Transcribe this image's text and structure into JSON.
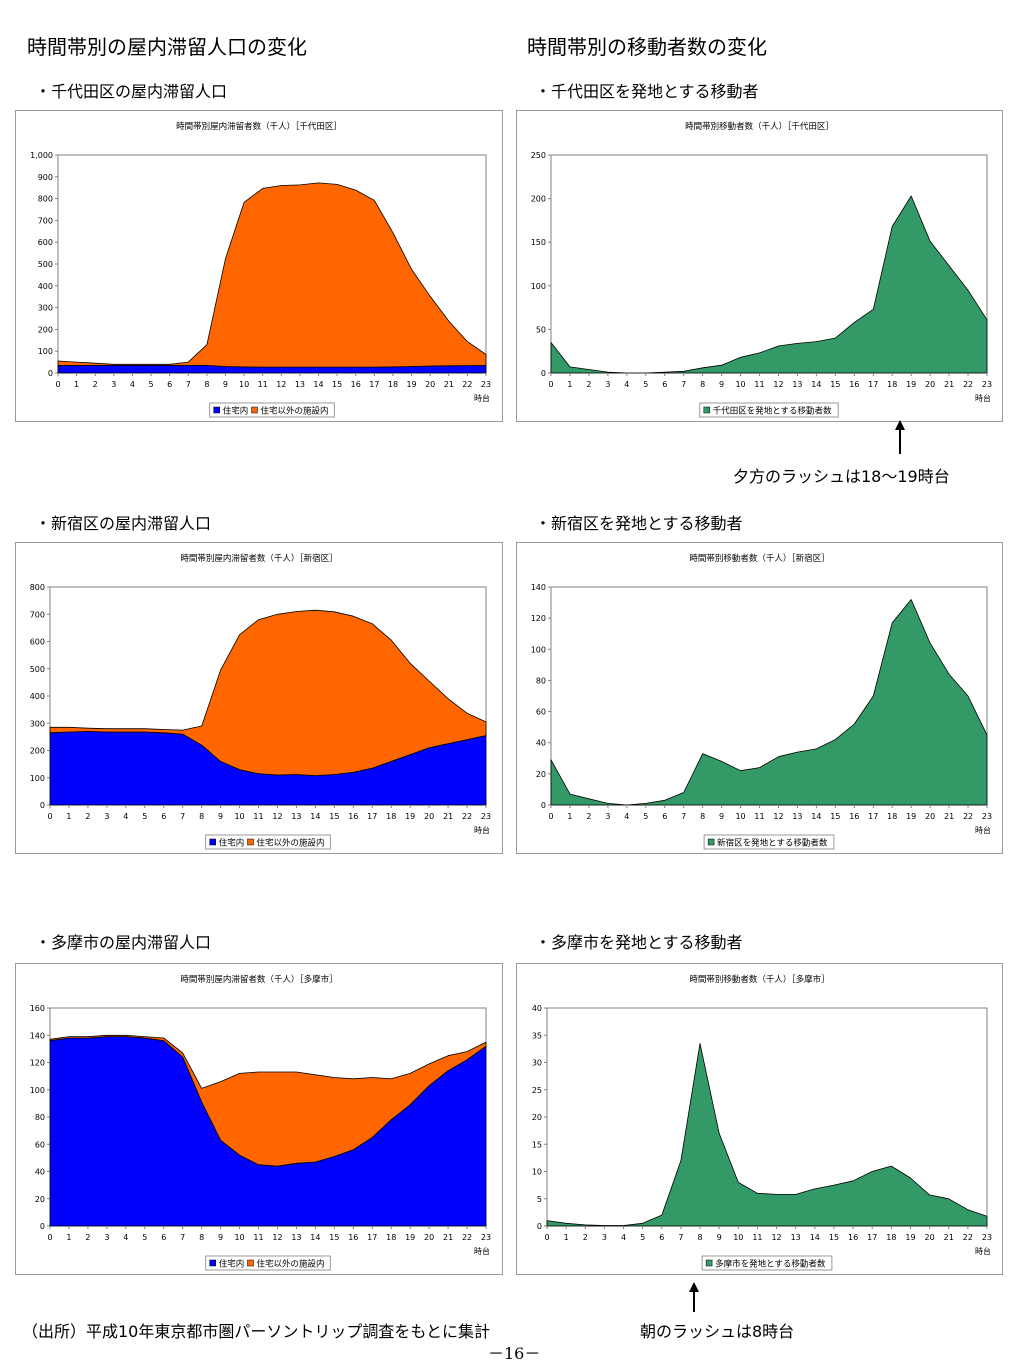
{
  "headings": {
    "left": "時間帯別の屋内滞留人口の変化",
    "right": "時間帯別の移動者数の変化"
  },
  "subheadings": {
    "chiyoda_stay": "・千代田区の屋内滞留人口",
    "chiyoda_move": "・千代田区を発地とする移動者",
    "shinjuku_stay": "・新宿区の屋内滞留人口",
    "shinjuku_move": "・新宿区を発地とする移動者",
    "tama_stay": "・多摩市の屋内滞留人口",
    "tama_move": "・多摩市を発地とする移動者"
  },
  "annotations": {
    "evening": "夕方のラッシュは18～19時台",
    "morning": "朝のラッシュは8時台"
  },
  "footer": {
    "source": "（出所）平成10年東京都市圏パーソントリップ調査をもとに集計",
    "page": "－16－"
  },
  "colors": {
    "home": "#0000ff",
    "facility": "#ff6600",
    "movers": "#339966"
  },
  "chart_data": [
    {
      "type": "area",
      "stacked": true,
      "title": "時間帯別屋内滞留者数（千人）［千代田区］",
      "xlabel": "時台",
      "x": [
        0,
        1,
        2,
        3,
        4,
        5,
        6,
        7,
        8,
        9,
        10,
        11,
        12,
        13,
        14,
        15,
        16,
        17,
        18,
        19,
        20,
        21,
        22,
        23
      ],
      "ylim": [
        0,
        1000
      ],
      "yticks": [
        0,
        100,
        200,
        300,
        400,
        500,
        600,
        700,
        800,
        900,
        1000
      ],
      "ytick_labels": [
        "0",
        "100",
        "200",
        "300",
        "400",
        "500",
        "600",
        "700",
        "800",
        "900",
        "1,000"
      ],
      "legend": "bottom",
      "series": [
        {
          "name": "住宅内",
          "color": "#0000ff",
          "values": [
            35,
            35,
            35,
            35,
            35,
            35,
            35,
            35,
            35,
            30,
            28,
            27,
            27,
            27,
            27,
            27,
            27,
            27,
            28,
            30,
            32,
            33,
            34,
            35
          ]
        },
        {
          "name": "住宅以外の施設内",
          "color": "#ff6600",
          "values": [
            20,
            15,
            10,
            5,
            5,
            5,
            5,
            15,
            95,
            495,
            755,
            820,
            833,
            836,
            845,
            838,
            812,
            765,
            615,
            445,
            320,
            205,
            110,
            50
          ]
        }
      ]
    },
    {
      "type": "area",
      "title": "時間帯別移動者数（千人）［千代田区］",
      "xlabel": "時台",
      "x": [
        0,
        1,
        2,
        3,
        4,
        5,
        6,
        7,
        8,
        9,
        10,
        11,
        12,
        13,
        14,
        15,
        16,
        17,
        18,
        19,
        20,
        21,
        22,
        23
      ],
      "ylim": [
        0,
        250
      ],
      "yticks": [
        0,
        50,
        100,
        150,
        200,
        250
      ],
      "legend": "bottom",
      "series": [
        {
          "name": "千代田区を発地とする移動者数",
          "color": "#339966",
          "values": [
            35,
            7,
            4,
            1,
            0,
            0,
            1,
            2,
            6,
            9,
            18,
            23,
            31,
            34,
            36,
            40,
            58,
            73,
            168,
            203,
            151,
            123,
            95,
            61
          ]
        }
      ]
    },
    {
      "type": "area",
      "stacked": true,
      "title": "時間帯別屋内滞留者数（千人）［新宿区］",
      "xlabel": "時台",
      "x": [
        0,
        1,
        2,
        3,
        4,
        5,
        6,
        7,
        8,
        9,
        10,
        11,
        12,
        13,
        14,
        15,
        16,
        17,
        18,
        19,
        20,
        21,
        22,
        23
      ],
      "ylim": [
        0,
        800
      ],
      "yticks": [
        0,
        100,
        200,
        300,
        400,
        500,
        600,
        700,
        800
      ],
      "legend": "bottom",
      "series": [
        {
          "name": "住宅内",
          "color": "#0000ff",
          "values": [
            265,
            268,
            270,
            268,
            268,
            268,
            265,
            260,
            220,
            160,
            130,
            115,
            110,
            112,
            108,
            112,
            120,
            135,
            160,
            185,
            210,
            225,
            240,
            255
          ]
        },
        {
          "name": "住宅以外の施設内",
          "color": "#ff6600",
          "values": [
            20,
            17,
            12,
            12,
            12,
            12,
            12,
            15,
            70,
            335,
            495,
            565,
            590,
            598,
            607,
            597,
            573,
            530,
            445,
            335,
            245,
            165,
            97,
            50
          ]
        }
      ]
    },
    {
      "type": "area",
      "title": "時間帯別移動者数（千人）［新宿区］",
      "xlabel": "時台",
      "x": [
        0,
        1,
        2,
        3,
        4,
        5,
        6,
        7,
        8,
        9,
        10,
        11,
        12,
        13,
        14,
        15,
        16,
        17,
        18,
        19,
        20,
        21,
        22,
        23
      ],
      "ylim": [
        0,
        140
      ],
      "yticks": [
        0,
        20,
        40,
        60,
        80,
        100,
        120,
        140
      ],
      "legend": "bottom",
      "series": [
        {
          "name": "新宿区を発地とする移動者数",
          "color": "#339966",
          "values": [
            29,
            7,
            4,
            1,
            0,
            1,
            3,
            8,
            33,
            28,
            22,
            24,
            31,
            34,
            36,
            42,
            52,
            70,
            117,
            132,
            104,
            84,
            70,
            45
          ]
        }
      ]
    },
    {
      "type": "area",
      "stacked": true,
      "title": "時間帯別屋内滞留者数（千人）［多摩市］",
      "xlabel": "時台",
      "x": [
        0,
        1,
        2,
        3,
        4,
        5,
        6,
        7,
        8,
        9,
        10,
        11,
        12,
        13,
        14,
        15,
        16,
        17,
        18,
        19,
        20,
        21,
        22,
        23
      ],
      "ylim": [
        0,
        160
      ],
      "yticks": [
        0,
        20,
        40,
        60,
        80,
        100,
        120,
        140,
        160
      ],
      "legend": "bottom",
      "series": [
        {
          "name": "住宅内",
          "color": "#0000ff",
          "values": [
            136,
            138,
            138,
            139,
            139,
            138,
            136,
            124,
            91,
            63,
            52,
            45,
            44,
            46,
            47,
            51,
            56,
            65,
            78,
            89,
            103,
            114,
            122,
            132
          ]
        },
        {
          "name": "住宅以外の施設内",
          "color": "#ff6600",
          "values": [
            1,
            1,
            1,
            1,
            1,
            1,
            2,
            3,
            10,
            43,
            60,
            68,
            69,
            67,
            64,
            58,
            52,
            44,
            30,
            23,
            16,
            11,
            6,
            3
          ]
        }
      ]
    },
    {
      "type": "area",
      "title": "時間帯別移動者数（千人）［多摩市］",
      "xlabel": "時台",
      "x": [
        0,
        1,
        2,
        3,
        4,
        5,
        6,
        7,
        8,
        9,
        10,
        11,
        12,
        13,
        14,
        15,
        16,
        17,
        18,
        19,
        20,
        21,
        22,
        23
      ],
      "ylim": [
        0,
        40
      ],
      "yticks": [
        0,
        5,
        10,
        15,
        20,
        25,
        30,
        35,
        40
      ],
      "legend": "bottom",
      "series": [
        {
          "name": "多摩市を発地とする移動者数",
          "color": "#339966",
          "values": [
            1,
            0.5,
            0.2,
            0.1,
            0.1,
            0.5,
            2,
            12,
            33.5,
            17,
            8,
            6,
            5.8,
            5.8,
            6.8,
            7.5,
            8.3,
            10,
            11,
            8.8,
            5.7,
            5,
            3,
            1.8
          ]
        }
      ]
    }
  ]
}
